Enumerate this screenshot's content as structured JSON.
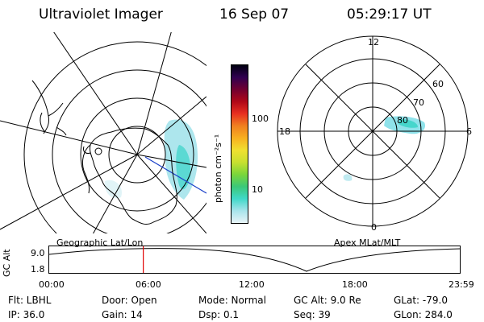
{
  "header": {
    "title": "Ultraviolet Imager",
    "date": "16 Sep 07",
    "time": "05:29:17 UT"
  },
  "left_map": {
    "label": "Geographic Lat/Lon"
  },
  "right_map": {
    "label": "Apex MLat/MLT",
    "mlt_labels": [
      "12",
      "18",
      "6",
      "0"
    ],
    "lat_labels": [
      "60",
      "70",
      "80"
    ]
  },
  "colorbar": {
    "unit_label": "photon cm⁻²s⁻¹",
    "ticks": [
      "100",
      "10"
    ],
    "colors": [
      "#e8f4f8",
      "#a8e4ec",
      "#40d8c8",
      "#3cc878",
      "#7ad63a",
      "#c8e030",
      "#f0e030",
      "#f8b020",
      "#f08020",
      "#e83020",
      "#b00818",
      "#700030",
      "#300050",
      "#000010"
    ]
  },
  "timeline": {
    "axis_label": "GC Alt",
    "ytick_top": "9.0",
    "ytick_bottom": "1.8",
    "xticks": [
      "00:00",
      "06:00",
      "12:00",
      "18:00",
      "23:59"
    ],
    "current_time_fraction": 0.2287,
    "marker_color": "#e00000"
  },
  "info": {
    "flt": "Flt: LBHL",
    "door": "Door: Open",
    "mode": "Mode: Normal",
    "gc_alt": "GC Alt: 9.0 Re",
    "glat": "GLat: -79.0",
    "ip": "IP: 36.0",
    "gain": "Gain: 14",
    "dsp": "Dsp:    0.1",
    "seq": "Seq: 39",
    "glon": "GLon: 284.0"
  }
}
